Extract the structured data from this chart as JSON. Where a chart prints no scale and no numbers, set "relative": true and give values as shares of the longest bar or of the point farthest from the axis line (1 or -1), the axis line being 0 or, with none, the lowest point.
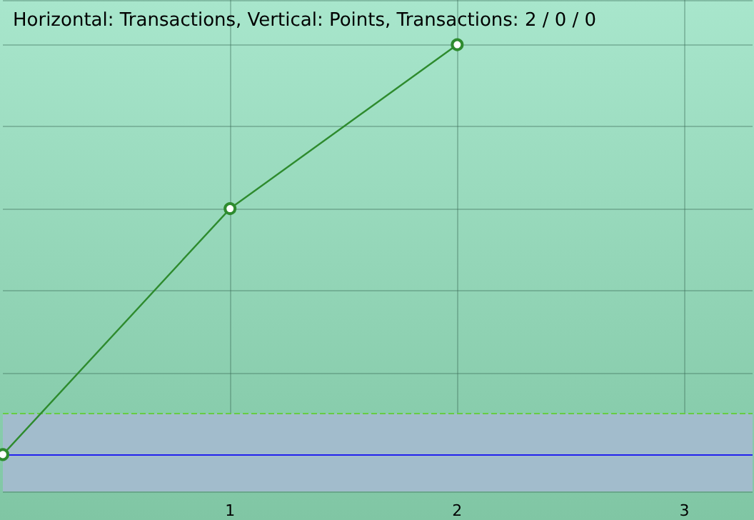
{
  "chart_data": {
    "type": "line",
    "title": "Horizontal: Transactions, Vertical: Points, Transactions: 2 / 0 / 0",
    "relative": true,
    "x": [
      0,
      1,
      2
    ],
    "series": [
      {
        "color": "#2e8b2e",
        "values": [
          0,
          0.6,
          1
        ]
      }
    ],
    "xlim": [
      0,
      3.3
    ],
    "xticks": [
      1,
      2,
      3
    ],
    "tick_labels": "x",
    "grid": true,
    "marker": "circle",
    "line_style": "solid",
    "ref_lines": [
      {
        "axis": "y",
        "value": 0,
        "color": "#2222ee",
        "line_style": "solid"
      },
      {
        "axis": "y",
        "value": 0.1,
        "color": "#66cc44",
        "line_style": "dashed"
      }
    ],
    "bands": [
      {
        "axis": "y",
        "from": -0.09,
        "to": 0.1,
        "color": "#a2bccc"
      }
    ]
  }
}
